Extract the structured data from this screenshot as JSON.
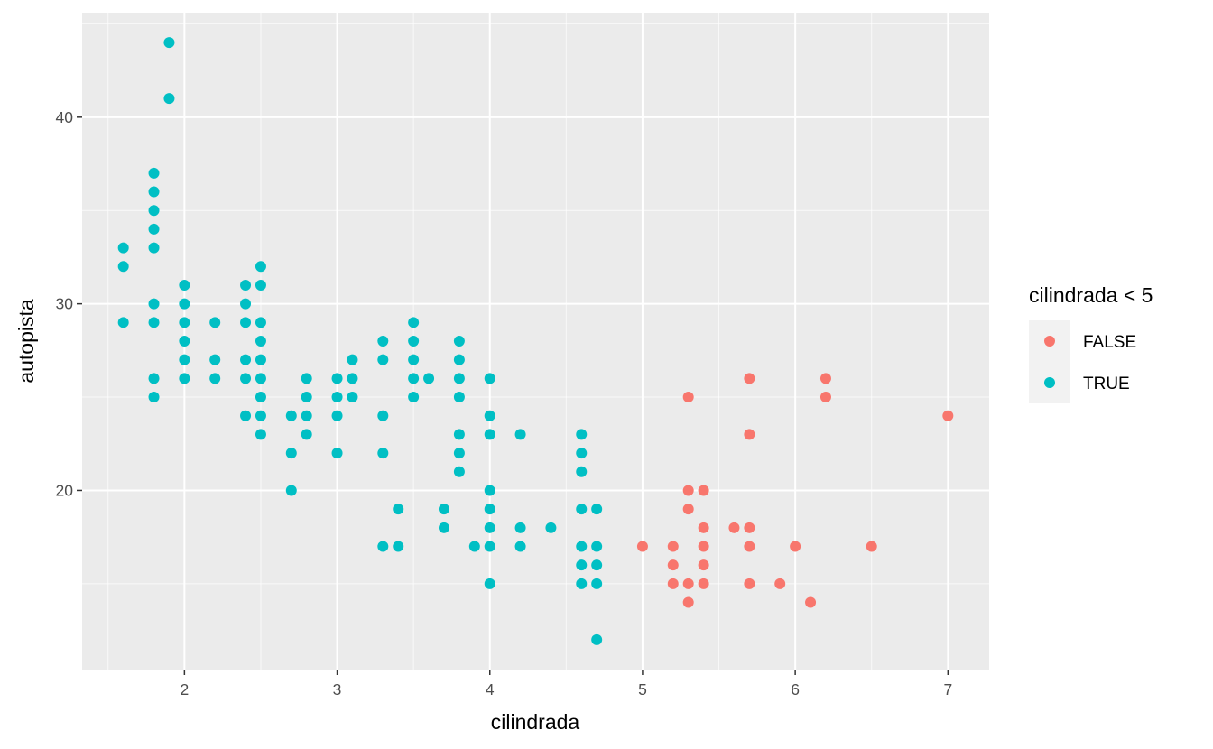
{
  "chart_data": {
    "type": "scatter",
    "xlabel": "cilindrada",
    "ylabel": "autopista",
    "xlim": [
      1.33,
      7.27
    ],
    "ylim": [
      10.4,
      45.6
    ],
    "x_ticks": [
      2,
      3,
      4,
      5,
      6,
      7
    ],
    "y_ticks": [
      20,
      30,
      40
    ],
    "grid": true,
    "legend": {
      "title": "cilindrada < 5",
      "position": "right"
    },
    "colors": {
      "panel": "#ebebeb",
      "grid_major": "#ffffff",
      "FALSE": "#F8766D",
      "TRUE": "#00BFC4"
    },
    "series": [
      {
        "name": "FALSE",
        "points": [
          [
            5.0,
            17
          ],
          [
            5.2,
            17
          ],
          [
            5.2,
            16
          ],
          [
            5.2,
            15
          ],
          [
            5.3,
            25
          ],
          [
            5.3,
            20
          ],
          [
            5.3,
            19
          ],
          [
            5.3,
            15
          ],
          [
            5.3,
            14
          ],
          [
            5.4,
            20
          ],
          [
            5.4,
            18
          ],
          [
            5.4,
            17
          ],
          [
            5.4,
            16
          ],
          [
            5.4,
            15
          ],
          [
            5.6,
            18
          ],
          [
            5.7,
            26
          ],
          [
            5.7,
            23
          ],
          [
            5.7,
            18
          ],
          [
            5.7,
            17
          ],
          [
            5.7,
            15
          ],
          [
            5.9,
            15
          ],
          [
            6.0,
            17
          ],
          [
            6.1,
            14
          ],
          [
            6.2,
            26
          ],
          [
            6.2,
            25
          ],
          [
            6.5,
            17
          ],
          [
            7.0,
            24
          ]
        ]
      },
      {
        "name": "TRUE",
        "points": [
          [
            1.6,
            33
          ],
          [
            1.6,
            32
          ],
          [
            1.6,
            29
          ],
          [
            1.8,
            37
          ],
          [
            1.8,
            36
          ],
          [
            1.8,
            35
          ],
          [
            1.8,
            34
          ],
          [
            1.8,
            33
          ],
          [
            1.8,
            30
          ],
          [
            1.8,
            29
          ],
          [
            1.8,
            26
          ],
          [
            1.8,
            25
          ],
          [
            1.9,
            44
          ],
          [
            1.9,
            41
          ],
          [
            2.0,
            31
          ],
          [
            2.0,
            30
          ],
          [
            2.0,
            29
          ],
          [
            2.0,
            28
          ],
          [
            2.0,
            27
          ],
          [
            2.0,
            26
          ],
          [
            2.2,
            29
          ],
          [
            2.2,
            27
          ],
          [
            2.2,
            26
          ],
          [
            2.4,
            31
          ],
          [
            2.4,
            30
          ],
          [
            2.4,
            29
          ],
          [
            2.4,
            27
          ],
          [
            2.4,
            26
          ],
          [
            2.4,
            24
          ],
          [
            2.5,
            32
          ],
          [
            2.5,
            31
          ],
          [
            2.5,
            29
          ],
          [
            2.5,
            28
          ],
          [
            2.5,
            27
          ],
          [
            2.5,
            26
          ],
          [
            2.5,
            25
          ],
          [
            2.5,
            24
          ],
          [
            2.5,
            23
          ],
          [
            2.7,
            24
          ],
          [
            2.7,
            22
          ],
          [
            2.7,
            20
          ],
          [
            2.8,
            26
          ],
          [
            2.8,
            25
          ],
          [
            2.8,
            24
          ],
          [
            2.8,
            23
          ],
          [
            3.0,
            26
          ],
          [
            3.0,
            25
          ],
          [
            3.0,
            24
          ],
          [
            3.0,
            22
          ],
          [
            3.1,
            27
          ],
          [
            3.1,
            26
          ],
          [
            3.1,
            25
          ],
          [
            3.3,
            28
          ],
          [
            3.3,
            27
          ],
          [
            3.3,
            24
          ],
          [
            3.3,
            22
          ],
          [
            3.3,
            17
          ],
          [
            3.4,
            19
          ],
          [
            3.4,
            17
          ],
          [
            3.5,
            29
          ],
          [
            3.5,
            28
          ],
          [
            3.5,
            27
          ],
          [
            3.5,
            26
          ],
          [
            3.5,
            25
          ],
          [
            3.6,
            26
          ],
          [
            3.7,
            19
          ],
          [
            3.7,
            18
          ],
          [
            3.8,
            28
          ],
          [
            3.8,
            27
          ],
          [
            3.8,
            26
          ],
          [
            3.8,
            25
          ],
          [
            3.8,
            23
          ],
          [
            3.8,
            22
          ],
          [
            3.8,
            21
          ],
          [
            3.9,
            17
          ],
          [
            4.0,
            26
          ],
          [
            4.0,
            24
          ],
          [
            4.0,
            23
          ],
          [
            4.0,
            20
          ],
          [
            4.0,
            19
          ],
          [
            4.0,
            18
          ],
          [
            4.0,
            17
          ],
          [
            4.0,
            15
          ],
          [
            4.2,
            23
          ],
          [
            4.2,
            18
          ],
          [
            4.2,
            17
          ],
          [
            4.4,
            18
          ],
          [
            4.6,
            23
          ],
          [
            4.6,
            22
          ],
          [
            4.6,
            21
          ],
          [
            4.6,
            19
          ],
          [
            4.6,
            17
          ],
          [
            4.6,
            16
          ],
          [
            4.6,
            15
          ],
          [
            4.7,
            19
          ],
          [
            4.7,
            17
          ],
          [
            4.7,
            16
          ],
          [
            4.7,
            15
          ],
          [
            4.7,
            12
          ]
        ]
      }
    ]
  }
}
